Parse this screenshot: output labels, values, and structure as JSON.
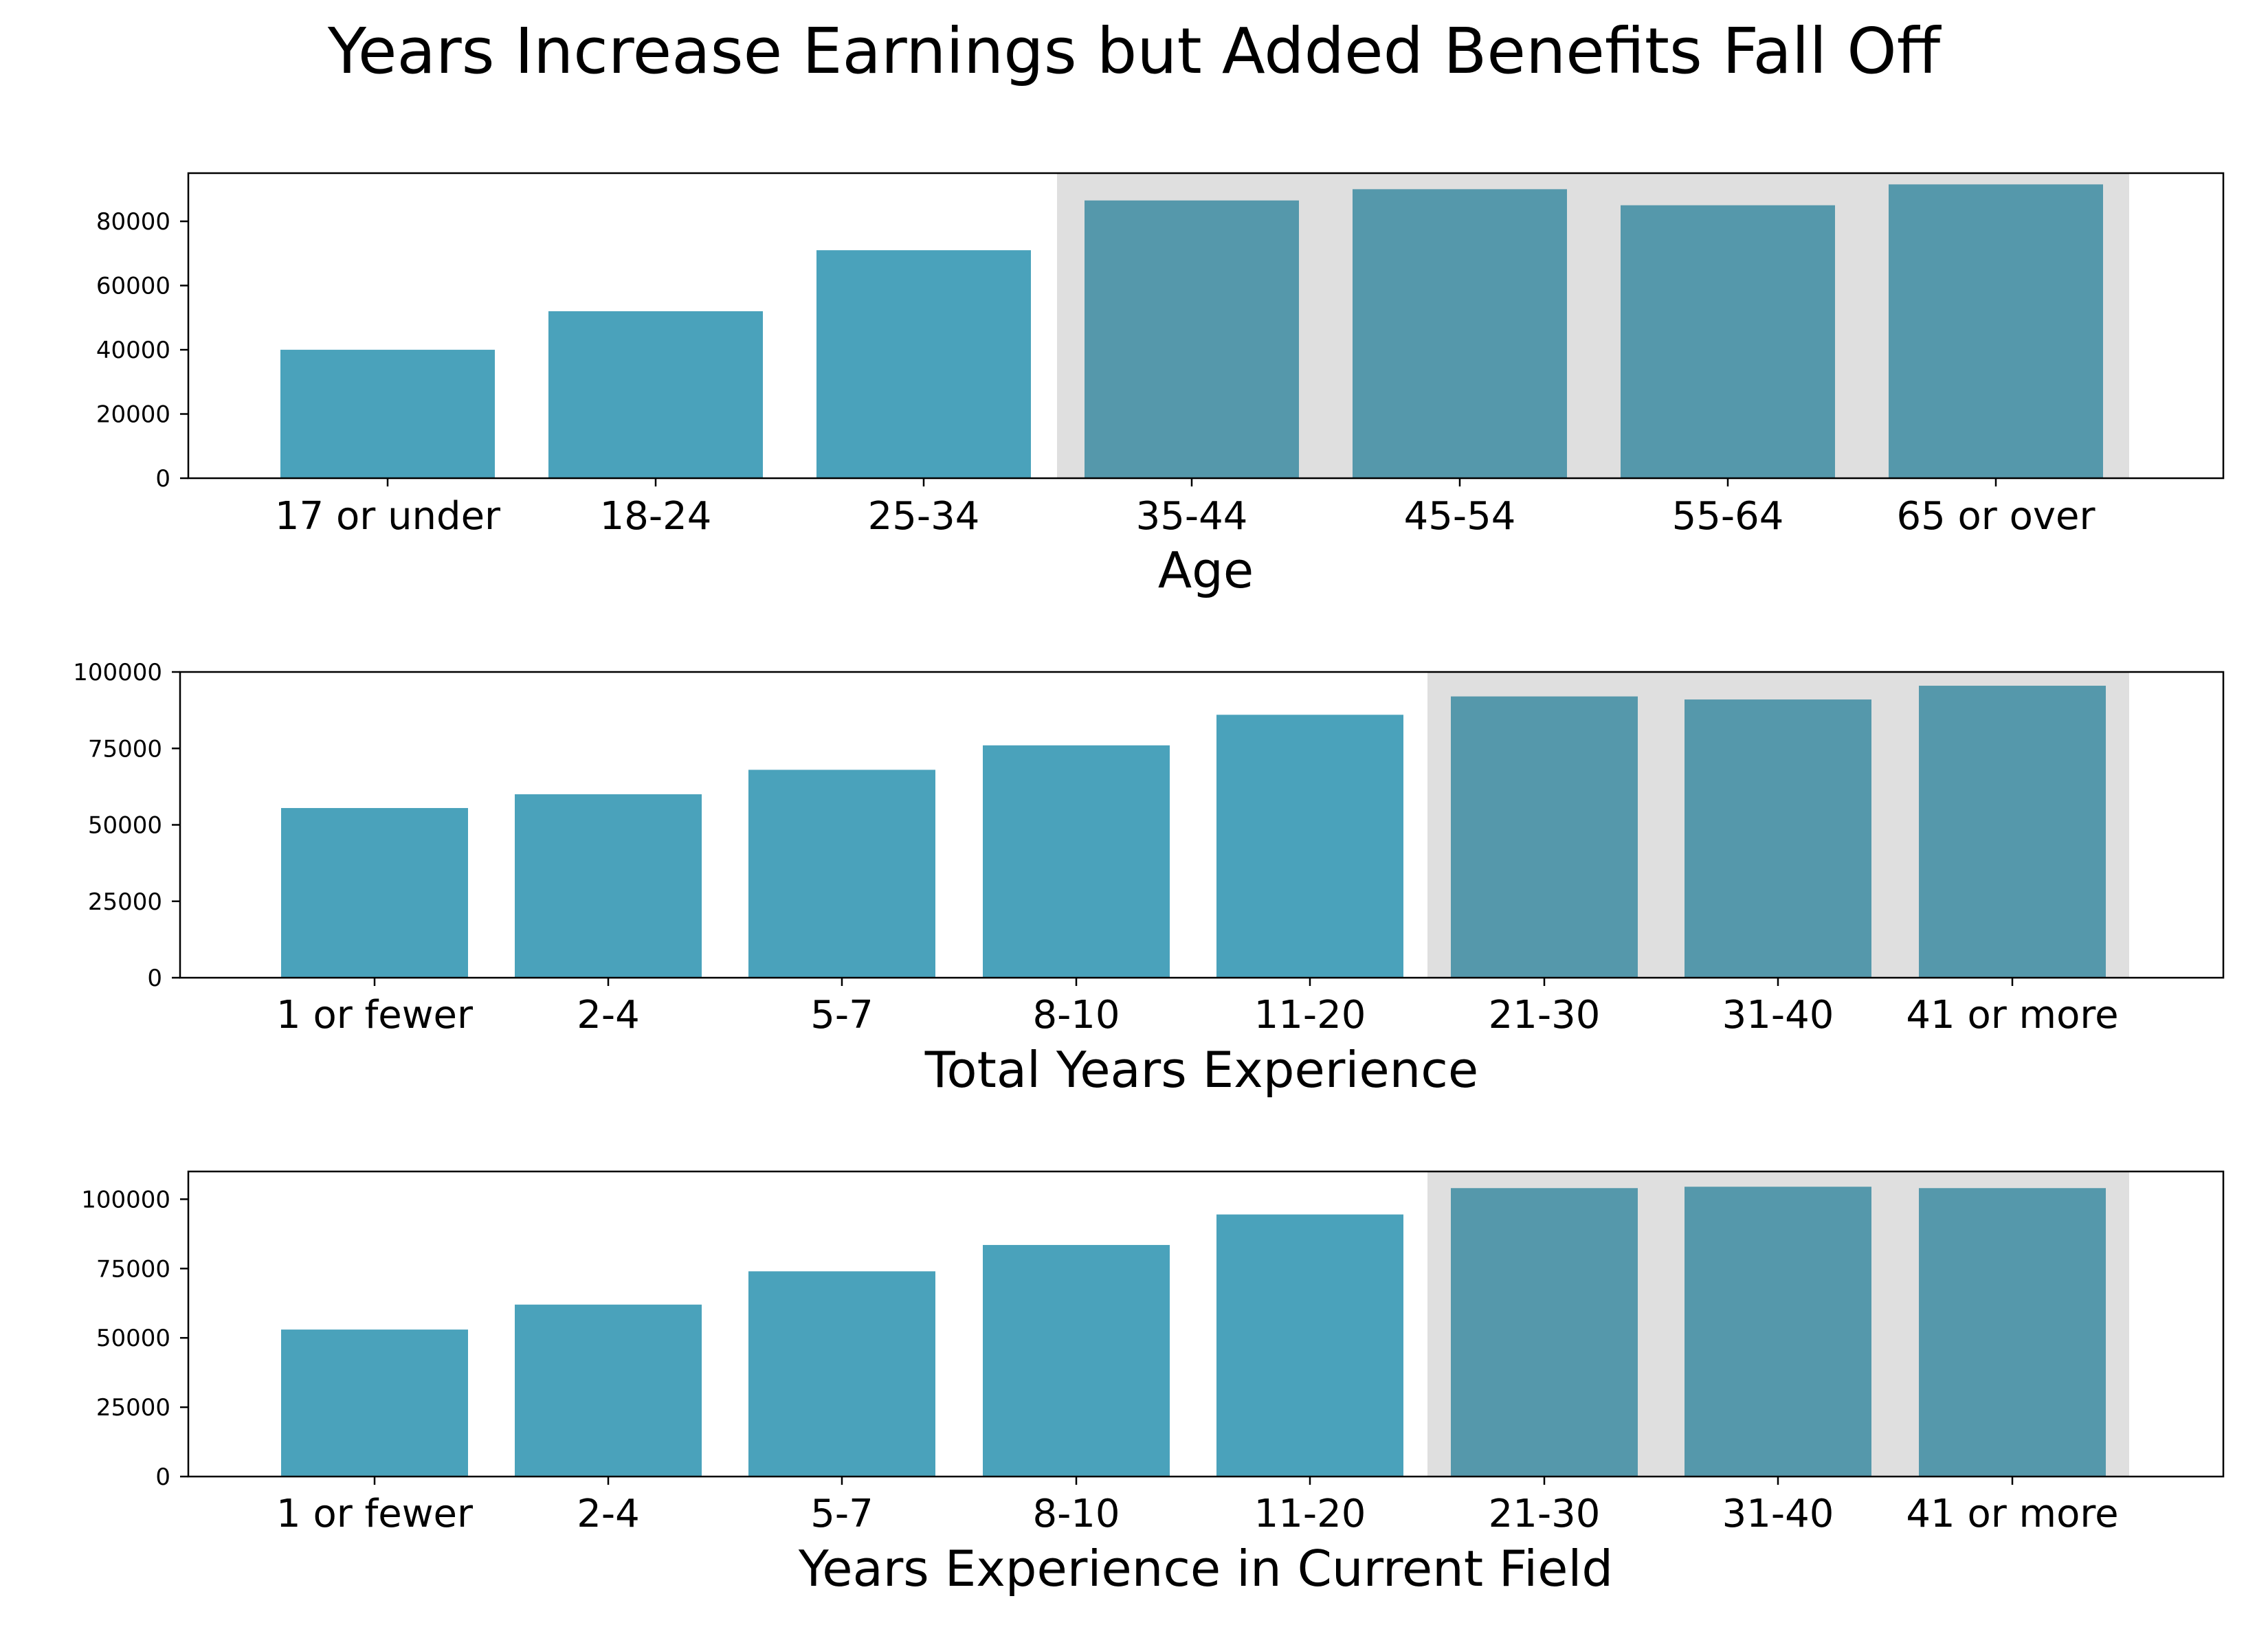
{
  "title": "Years Increase Earnings but Added Benefits Fall Off",
  "colors": {
    "bar": "#4AA2BB",
    "highlight_bar": "#5598AB",
    "highlight_band": "#DFDFDF",
    "axis": "#000000"
  },
  "chart_data": [
    {
      "type": "bar",
      "xlabel": "Age",
      "categories": [
        "17 or under",
        "18-24",
        "25-34",
        "35-44",
        "45-54",
        "55-64",
        "65 or over"
      ],
      "values": [
        40000,
        52000,
        71000,
        86500,
        90000,
        85000,
        91500
      ],
      "highlight_categories": [
        "35-44",
        "45-54",
        "55-64",
        "65 or over"
      ],
      "ylim": [
        0,
        95000
      ],
      "yticks": [
        0,
        20000,
        40000,
        60000,
        80000
      ],
      "ytick_labels": [
        "0",
        "20000",
        "40000",
        "60000",
        "80000"
      ],
      "grid": false
    },
    {
      "type": "bar",
      "xlabel": "Total Years Experience",
      "categories": [
        "1 or fewer",
        "2-4",
        "5-7",
        "8-10",
        "11-20",
        "21-30",
        "31-40",
        "41 or more"
      ],
      "values": [
        55500,
        60000,
        68000,
        76000,
        86000,
        92000,
        91000,
        95500
      ],
      "highlight_categories": [
        "21-30",
        "31-40",
        "41 or more"
      ],
      "ylim": [
        0,
        100000
      ],
      "yticks": [
        0,
        25000,
        50000,
        75000,
        100000
      ],
      "ytick_labels": [
        "0",
        "25000",
        "50000",
        "75000",
        "100000"
      ],
      "grid": false
    },
    {
      "type": "bar",
      "xlabel": "Years Experience in Current Field",
      "categories": [
        "1 or fewer",
        "2-4",
        "5-7",
        "8-10",
        "11-20",
        "21-30",
        "31-40",
        "41 or more"
      ],
      "values": [
        53000,
        62000,
        74000,
        83500,
        94500,
        104000,
        104500,
        104000
      ],
      "highlight_categories": [
        "21-30",
        "31-40",
        "41 or more"
      ],
      "ylim": [
        0,
        110000
      ],
      "yticks": [
        0,
        25000,
        50000,
        75000,
        100000
      ],
      "ytick_labels": [
        "0",
        "25000",
        "50000",
        "75000",
        "100000"
      ],
      "grid": false
    }
  ]
}
